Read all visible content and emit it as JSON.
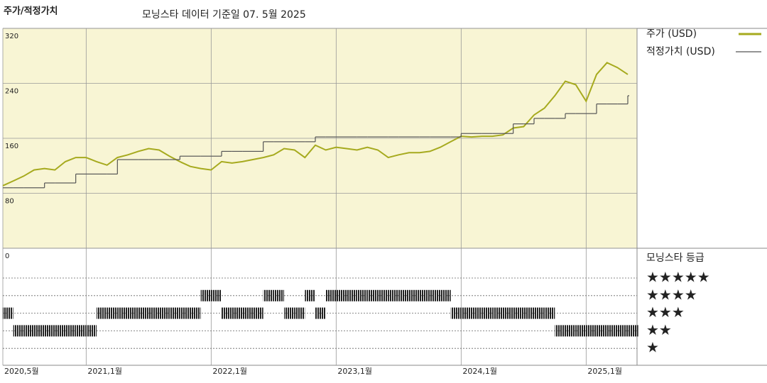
{
  "chart_data": {
    "type": "line",
    "title": "주가/적정가치",
    "subtitle": "모닝스타 데이터 기준일 07. 5월 2025",
    "x": [
      "2020-05",
      "2020-06",
      "2020-07",
      "2020-08",
      "2020-09",
      "2020-10",
      "2020-11",
      "2020-12",
      "2021-01",
      "2021-02",
      "2021-03",
      "2021-04",
      "2021-05",
      "2021-06",
      "2021-07",
      "2021-08",
      "2021-09",
      "2021-10",
      "2021-11",
      "2021-12",
      "2022-01",
      "2022-02",
      "2022-03",
      "2022-04",
      "2022-05",
      "2022-06",
      "2022-07",
      "2022-08",
      "2022-09",
      "2022-10",
      "2022-11",
      "2022-12",
      "2023-01",
      "2023-02",
      "2023-03",
      "2023-04",
      "2023-05",
      "2023-06",
      "2023-07",
      "2023-08",
      "2023-09",
      "2023-10",
      "2023-11",
      "2023-12",
      "2024-01",
      "2024-02",
      "2024-03",
      "2024-04",
      "2024-05",
      "2024-06",
      "2024-07",
      "2024-08",
      "2024-09",
      "2024-10",
      "2024-11",
      "2024-12",
      "2025-01",
      "2025-02",
      "2025-03",
      "2025-04",
      "2025-05"
    ],
    "series": [
      {
        "name": "주가 (USD)",
        "color": "#a6aa1e",
        "values": [
          91,
          98,
          105,
          114,
          116,
          114,
          126,
          132,
          132,
          126,
          121,
          132,
          136,
          141,
          145,
          143,
          134,
          126,
          119,
          116,
          114,
          126,
          124,
          126,
          129,
          132,
          136,
          145,
          143,
          132,
          150,
          143,
          147,
          145,
          143,
          147,
          143,
          132,
          136,
          139,
          139,
          141,
          147,
          155,
          163,
          162,
          163,
          163,
          165,
          175,
          177,
          194,
          204,
          222,
          243,
          238,
          214,
          253,
          270,
          263,
          253
        ]
      },
      {
        "name": "적정가치 (USD)",
        "color": "#555555",
        "step": true,
        "values": [
          88,
          88,
          88,
          88,
          95,
          95,
          95,
          108,
          108,
          108,
          108,
          129,
          129,
          129,
          129,
          129,
          129,
          134,
          134,
          134,
          134,
          141,
          141,
          141,
          141,
          155,
          155,
          155,
          155,
          155,
          162,
          162,
          162,
          162,
          162,
          162,
          162,
          162,
          162,
          162,
          162,
          162,
          162,
          162,
          167,
          167,
          167,
          167,
          167,
          181,
          181,
          189,
          189,
          189,
          196,
          196,
          196,
          210,
          210,
          210,
          222
        ]
      }
    ],
    "ylim": [
      0,
      320
    ],
    "yticks": [
      0,
      80,
      160,
      240,
      320
    ],
    "grid": true,
    "xticks": [
      {
        "value": "2020-05",
        "label": "2020,5월"
      },
      {
        "value": "2021-01",
        "label": "2021,1월"
      },
      {
        "value": "2022-01",
        "label": "2022,1월"
      },
      {
        "value": "2023-01",
        "label": "2023,1월"
      },
      {
        "value": "2024-01",
        "label": "2024,1월"
      },
      {
        "value": "2025-01",
        "label": "2025,1월"
      }
    ],
    "rating": {
      "title": "모닝스타 등급",
      "color": "#222222",
      "levels": [
        {
          "value": 5,
          "label": "★★★★★"
        },
        {
          "value": 4,
          "label": "★★★★"
        },
        {
          "value": 3,
          "label": "★★★"
        },
        {
          "value": 2,
          "label": "★★"
        },
        {
          "value": 1,
          "label": "★"
        }
      ],
      "values": [
        3,
        2,
        2,
        2,
        2,
        2,
        2,
        2,
        2,
        3,
        3,
        3,
        3,
        3,
        3,
        3,
        3,
        3,
        3,
        4,
        4,
        3,
        3,
        3,
        3,
        4,
        4,
        3,
        3,
        4,
        3,
        4,
        4,
        4,
        4,
        4,
        4,
        4,
        4,
        4,
        4,
        4,
        4,
        3,
        3,
        3,
        3,
        3,
        3,
        3,
        3,
        3,
        3,
        2,
        2,
        2,
        2,
        2,
        2,
        2,
        2
      ]
    }
  }
}
